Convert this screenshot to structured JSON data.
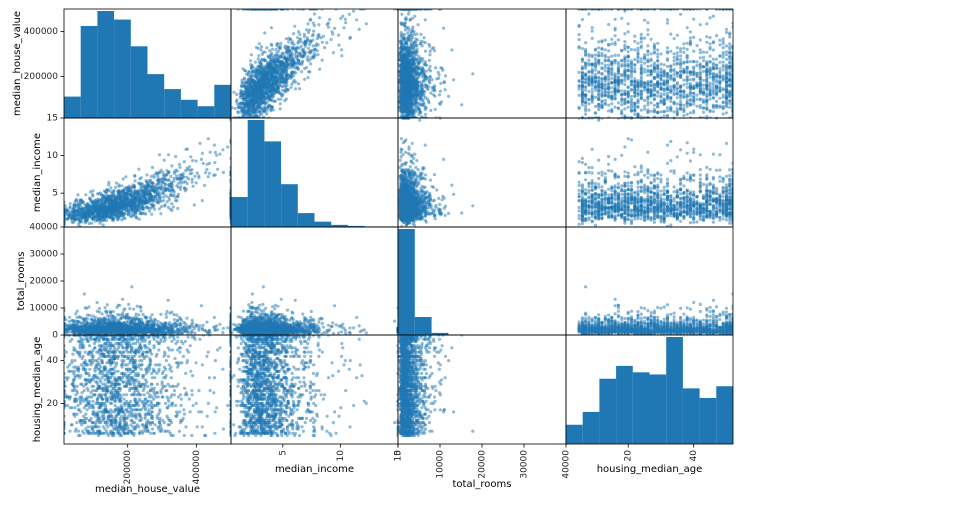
{
  "chart_data": {
    "type": "scatter_matrix",
    "variables": [
      "median_house_value",
      "median_income",
      "total_rooms",
      "housing_median_age"
    ],
    "ranges": [
      [
        14999,
        500001
      ],
      [
        0.5,
        15.0
      ],
      [
        0,
        40000
      ],
      [
        1,
        52
      ]
    ],
    "ticks": {
      "median_house_value": [
        200000,
        400000
      ],
      "median_income": [
        5,
        10,
        15
      ],
      "total_rooms": [
        0,
        10000,
        20000,
        30000,
        40000
      ],
      "housing_median_age": [
        20,
        40
      ]
    },
    "tick_labels": {
      "median_house_value": [
        "200000",
        "400000"
      ],
      "median_income": [
        "5",
        "10",
        "15"
      ],
      "total_rooms": [
        "0",
        "10000",
        "20000",
        "30000",
        "40000"
      ],
      "housing_median_age": [
        "20",
        "40"
      ]
    },
    "histograms": {
      "median_house_value": [
        0.2,
        0.86,
        1.0,
        0.92,
        0.67,
        0.41,
        0.27,
        0.17,
        0.11,
        0.31
      ],
      "median_income": [
        0.28,
        1.0,
        0.8,
        0.4,
        0.13,
        0.05,
        0.02,
        0.01,
        0.005,
        0.005
      ],
      "total_rooms": [
        1.0,
        0.17,
        0.02,
        0.005,
        0.002,
        0.001,
        0.001,
        0.0005,
        0.0005,
        0.0005
      ],
      "housing_median_age": [
        0.18,
        0.3,
        0.61,
        0.73,
        0.67,
        0.65,
        1.0,
        0.52,
        0.43,
        0.54
      ]
    },
    "color": "#1f77b4",
    "grid": false
  }
}
